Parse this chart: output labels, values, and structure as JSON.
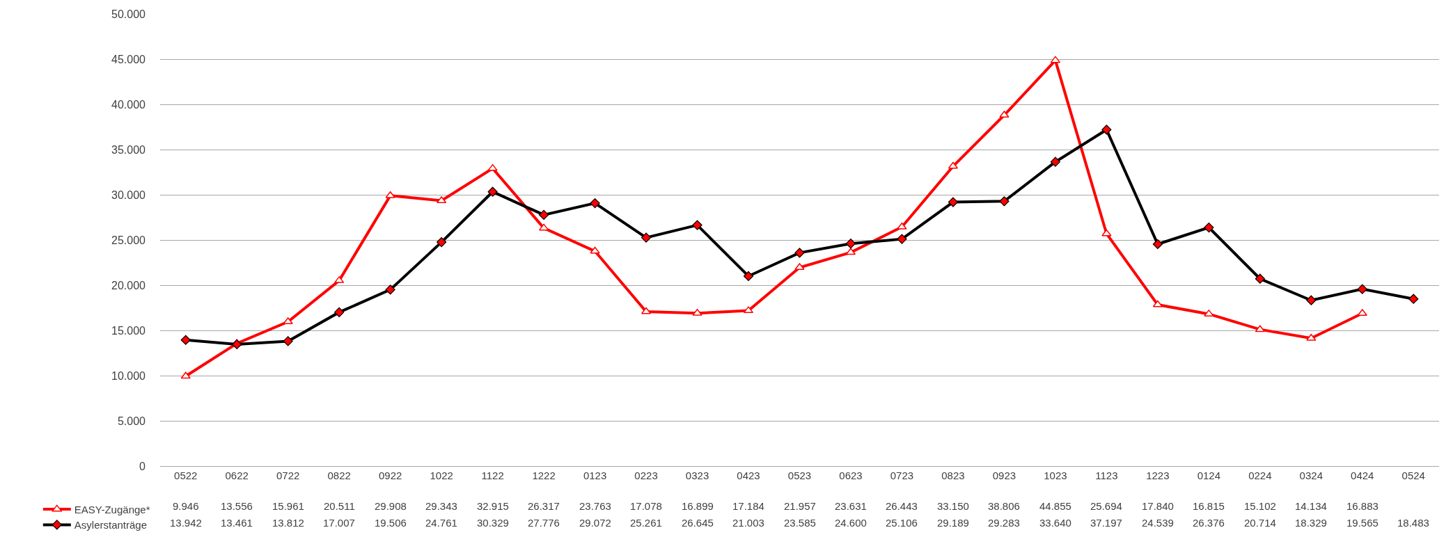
{
  "chart_data": {
    "type": "line",
    "categories": [
      "0522",
      "0622",
      "0722",
      "0822",
      "0922",
      "1022",
      "1122",
      "1222",
      "0123",
      "0223",
      "0323",
      "0423",
      "0523",
      "0623",
      "0723",
      "0823",
      "0923",
      "1023",
      "1123",
      "1223",
      "0124",
      "0224",
      "0324",
      "0424",
      "0524"
    ],
    "series": [
      {
        "name": "EASY-Zugänge*",
        "color": "#ff0000",
        "marker": "triangle",
        "values": [
          9946,
          13556,
          15961,
          20511,
          29908,
          29343,
          32915,
          26317,
          23763,
          17078,
          16899,
          17184,
          21957,
          23631,
          26443,
          33150,
          38806,
          44855,
          25694,
          17840,
          16815,
          15102,
          14134,
          16883,
          null
        ],
        "value_labels": [
          "9.946",
          "13.556",
          "15.961",
          "20.511",
          "29.908",
          "29.343",
          "32.915",
          "26.317",
          "23.763",
          "17.078",
          "16.899",
          "17.184",
          "21.957",
          "23.631",
          "26.443",
          "33.150",
          "38.806",
          "44.855",
          "25.694",
          "17.840",
          "16.815",
          "15.102",
          "14.134",
          "16.883",
          null
        ]
      },
      {
        "name": "Asylerstanträge",
        "color": "#000000",
        "marker": "diamond",
        "values": [
          13942,
          13461,
          13812,
          17007,
          19506,
          24761,
          30329,
          27776,
          29072,
          25261,
          26645,
          21003,
          23585,
          24600,
          25106,
          29189,
          29283,
          33640,
          37197,
          24539,
          26376,
          20714,
          18329,
          19565,
          18483
        ],
        "value_labels": [
          "13.942",
          "13.461",
          "13.812",
          "17.007",
          "19.506",
          "24.761",
          "30.329",
          "27.776",
          "29.072",
          "25.261",
          "26.645",
          "21.003",
          "23.585",
          "24.600",
          "25.106",
          "29.189",
          "29.283",
          "33.640",
          "37.197",
          "24.539",
          "26.376",
          "20.714",
          "18.329",
          "19.565",
          "18.483"
        ]
      }
    ],
    "ylim": [
      0,
      50000
    ],
    "yticks": [
      {
        "value": 0,
        "label": "0"
      },
      {
        "value": 5000,
        "label": "5.000"
      },
      {
        "value": 10000,
        "label": "10.000"
      },
      {
        "value": 15000,
        "label": "15.000"
      },
      {
        "value": 20000,
        "label": "20.000"
      },
      {
        "value": 25000,
        "label": "25.000"
      },
      {
        "value": 30000,
        "label": "30.000"
      },
      {
        "value": 35000,
        "label": "35.000"
      },
      {
        "value": 40000,
        "label": "40.000"
      },
      {
        "value": 45000,
        "label": "45.000"
      },
      {
        "value": 50000,
        "label": "50.000"
      }
    ],
    "grid": "y",
    "legend": "bottom left",
    "line_style": "solid"
  }
}
